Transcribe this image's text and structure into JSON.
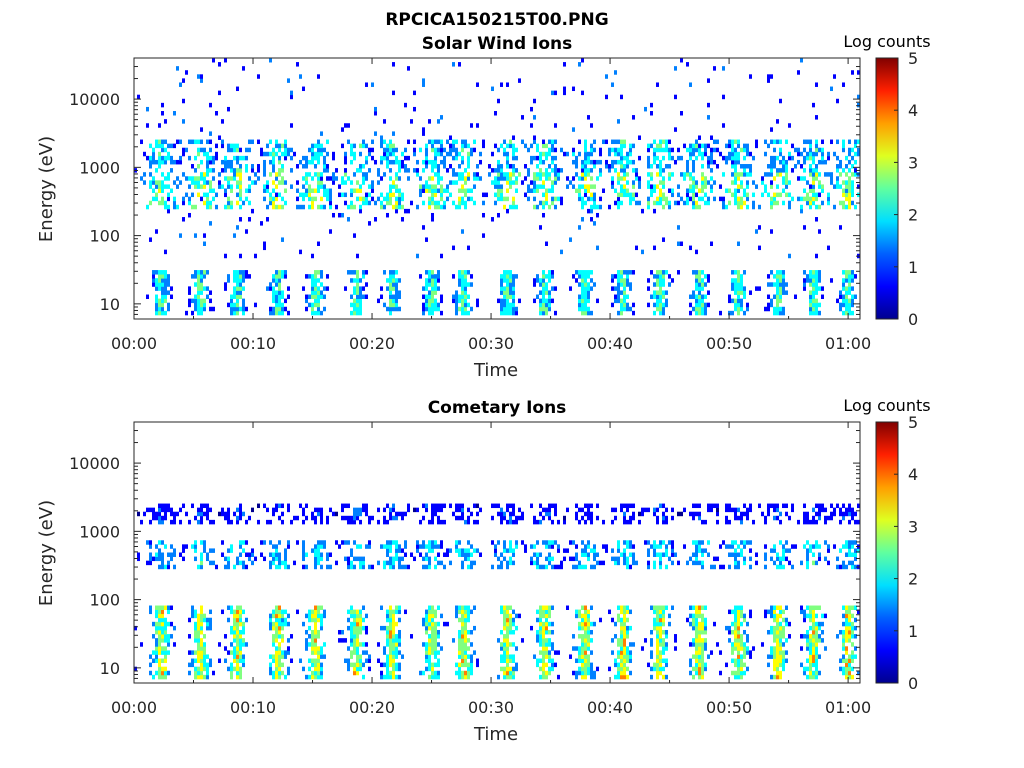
{
  "figure": {
    "title": "RPCICA150215T00.PNG"
  },
  "colormap": [
    "#00008f",
    "#0000ff",
    "#0080ff",
    "#00ffff",
    "#80ff80",
    "#ffff00",
    "#ff8000",
    "#ff0000",
    "#800000"
  ],
  "chart_data": [
    {
      "type": "heatmap",
      "title": "Solar Wind Ions",
      "xlabel": "Time",
      "ylabel": "Energy (eV)",
      "yscale": "log",
      "xlim": [
        "00:00",
        "01:01"
      ],
      "ylim": [
        6,
        40000
      ],
      "xticks": [
        "00:00",
        "00:10",
        "00:20",
        "00:30",
        "00:40",
        "00:50",
        "01:00"
      ],
      "yticks": [
        "10",
        "100",
        "1000",
        "10000"
      ],
      "colorbar": {
        "label": "Log counts",
        "range": [
          0,
          5
        ],
        "ticks": [
          "0",
          "1",
          "2",
          "3",
          "4",
          "5"
        ]
      },
      "grid": false,
      "sweep_times_min": [
        2.3,
        5.6,
        8.7,
        12.1,
        15.3,
        18.7,
        21.7,
        25.0,
        27.7,
        31.4,
        34.5,
        37.9,
        41.1,
        44.2,
        47.5,
        50.8,
        54.1,
        57.1,
        60.0
      ],
      "bands": [
        {
          "energy_min_ev": 7,
          "energy_max_ev": 30,
          "log_counts_peak": 2.4,
          "description": "low-energy bursts at each sweep"
        },
        {
          "energy_min_ev": 250,
          "energy_max_ev": 800,
          "log_counts_peak": 3.0,
          "description": "solar wind proton beam"
        },
        {
          "energy_min_ev": 800,
          "energy_max_ev": 2500,
          "log_counts_peak": 2.2,
          "description": "solar wind alpha beam"
        },
        {
          "energy_min_ev": 50,
          "energy_max_ev": 40000,
          "log_counts_peak": 0.5,
          "description": "sparse background counts"
        }
      ]
    },
    {
      "type": "heatmap",
      "title": "Cometary Ions",
      "xlabel": "Time",
      "ylabel": "Energy (eV)",
      "yscale": "log",
      "xlim": [
        "00:00",
        "01:01"
      ],
      "ylim": [
        6,
        40000
      ],
      "xticks": [
        "00:00",
        "00:10",
        "00:20",
        "00:30",
        "00:40",
        "00:50",
        "01:00"
      ],
      "yticks": [
        "10",
        "100",
        "1000",
        "10000"
      ],
      "colorbar": {
        "label": "Log counts",
        "range": [
          0,
          5
        ],
        "ticks": [
          "0",
          "1",
          "2",
          "3",
          "4",
          "5"
        ]
      },
      "grid": false,
      "sweep_times_min": [
        2.3,
        5.6,
        8.7,
        12.1,
        15.3,
        18.7,
        21.7,
        25.0,
        27.7,
        31.4,
        34.5,
        37.9,
        41.1,
        44.2,
        47.5,
        50.8,
        54.1,
        57.1,
        60.0
      ],
      "bands": [
        {
          "energy_min_ev": 7,
          "energy_max_ev": 80,
          "log_counts_peak": 3.2,
          "description": "low-energy cometary ion bursts at each sweep"
        },
        {
          "energy_min_ev": 300,
          "energy_max_ev": 700,
          "log_counts_peak": 2.0,
          "description": "faint mid-energy signal"
        },
        {
          "energy_min_ev": 1200,
          "energy_max_ev": 2500,
          "log_counts_peak": 1.0,
          "description": "sparse high-energy counts"
        }
      ]
    }
  ]
}
